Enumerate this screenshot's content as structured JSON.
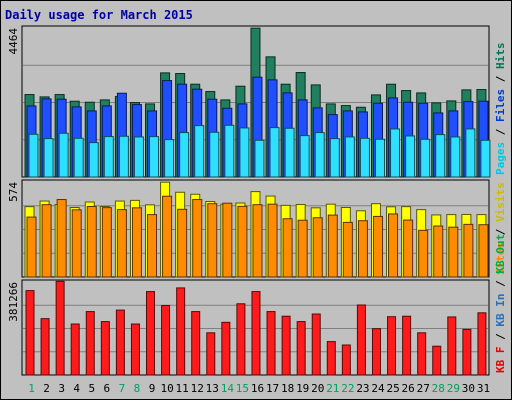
{
  "chart_data": {
    "type": "bar",
    "title": "Daily usage for March 2015",
    "categories": [
      "1",
      "2",
      "3",
      "4",
      "5",
      "6",
      "7",
      "8",
      "9",
      "10",
      "11",
      "12",
      "13",
      "14",
      "15",
      "16",
      "17",
      "18",
      "19",
      "20",
      "21",
      "22",
      "23",
      "24",
      "25",
      "26",
      "27",
      "28",
      "29",
      "30",
      "31"
    ],
    "weekend_days": [
      "1",
      "7",
      "8",
      "14",
      "15",
      "21",
      "22",
      "28",
      "29"
    ],
    "panels": [
      {
        "name": "pages-files-hits",
        "ymax_label": "4464",
        "ymax": 4464,
        "right_label": [
          {
            "text": "Pages",
            "color": "#00c8e8"
          },
          {
            "text": " / ",
            "color": "#000000"
          },
          {
            "text": "Files",
            "color": "#0038d8"
          },
          {
            "text": " / ",
            "color": "#000000"
          },
          {
            "text": "Hits",
            "color": "#007858"
          }
        ],
        "series": [
          {
            "name": "Hits",
            "color": "#1f7f5f",
            "values": [
              2470,
              2400,
              2470,
              2270,
              2240,
              2310,
              2410,
              2230,
              2190,
              3120,
              3100,
              2780,
              2560,
              2310,
              2720,
              4460,
              3600,
              2780,
              3130,
              2760,
              2190,
              2140,
              2090,
              2460,
              2780,
              2590,
              2520,
              2220,
              2280,
              2610,
              2620
            ]
          },
          {
            "name": "Files",
            "color": "#1f4fff",
            "values": [
              2130,
              2340,
              2330,
              2100,
              1980,
              2130,
              2510,
              2170,
              1980,
              2890,
              2780,
              2630,
              2330,
              2060,
              2190,
              2990,
              2910,
              2520,
              2310,
              2070,
              1870,
              1980,
              1950,
              2210,
              2370,
              2240,
              2210,
              1920,
              1980,
              2260,
              2270
            ]
          },
          {
            "name": "Pages",
            "color": "#2fdfff",
            "values": [
              1280,
              1150,
              1310,
              1160,
              1030,
              1210,
              1220,
              1200,
              1210,
              1120,
              1330,
              1540,
              1340,
              1550,
              1470,
              1100,
              1480,
              1460,
              1240,
              1330,
              1150,
              1200,
              1160,
              1130,
              1440,
              1230,
              1130,
              1270,
              1200,
              1440,
              1100
            ]
          }
        ]
      },
      {
        "name": "visits-sites",
        "ymax_label": "574",
        "ymax": 574,
        "right_label": [
          {
            "text": "Sites",
            "color": "#ff8800"
          },
          {
            "text": " / ",
            "color": "#000000"
          },
          {
            "text": "Visits",
            "color": "#ccbb00"
          }
        ],
        "series": [
          {
            "name": "Visits",
            "color": "#ffff00",
            "values": [
              425,
              459,
              438,
              420,
              453,
              426,
              459,
              463,
              436,
              573,
              512,
              500,
              456,
              440,
              447,
              516,
              489,
              433,
              438,
              418,
              440,
              420,
              400,
              443,
              424,
              425,
              407,
              375,
              377,
              378,
              377
            ]
          },
          {
            "name": "Sites",
            "color": "#ff8c00",
            "values": [
              362,
              437,
              468,
              406,
              426,
              419,
              407,
              418,
              377,
              488,
              409,
              468,
              443,
              446,
              427,
              437,
              440,
              352,
              343,
              358,
              374,
              330,
              340,
              366,
              381,
              344,
              282,
              308,
              301,
              318,
              316
            ]
          }
        ]
      },
      {
        "name": "kbf",
        "ymax_label": "381266",
        "ymax": 381266,
        "right_label": [
          {
            "text": "KB F",
            "color": "#ee0000"
          },
          {
            "text": " / ",
            "color": "#000000"
          },
          {
            "text": "KB In",
            "color": "#2a70b8"
          },
          {
            "text": " / ",
            "color": "#000000"
          },
          {
            "text": "KB Out",
            "color": "#00aa44"
          }
        ],
        "series": [
          {
            "name": "KB F",
            "color": "#ff1b1b",
            "values": [
              346000,
              231000,
              384000,
              209000,
              260000,
              219000,
              266000,
              209000,
              342000,
              285000,
              357000,
              260000,
              173000,
              216000,
              292000,
              342000,
              260000,
              241000,
              219000,
              250000,
              137000,
              123000,
              287000,
              190000,
              239000,
              241000,
              173000,
              118000,
              238000,
              187000,
              255000
            ]
          }
        ]
      }
    ]
  }
}
